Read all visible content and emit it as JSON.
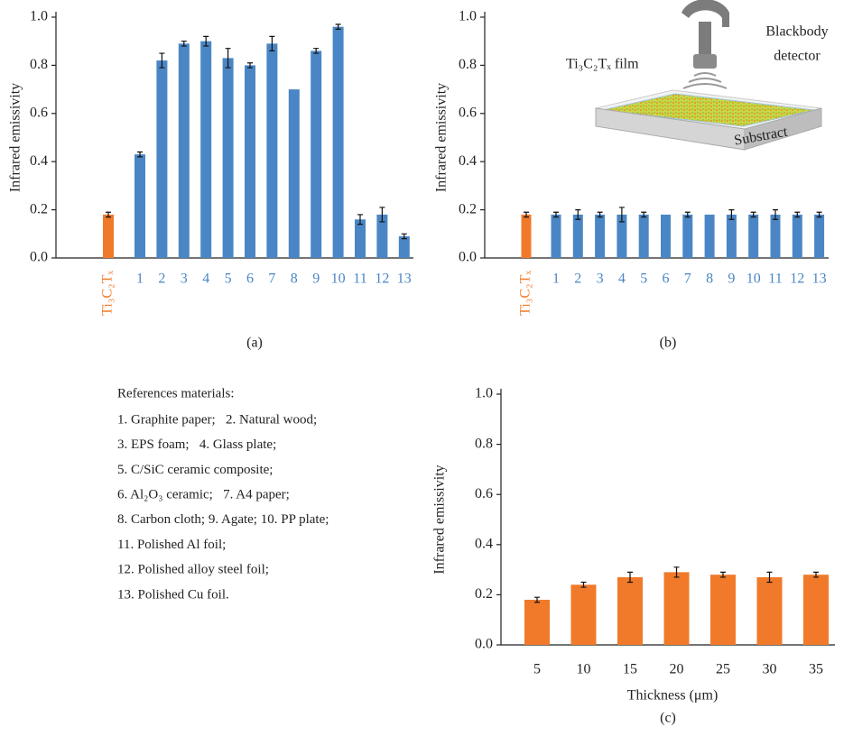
{
  "chart_data": [
    {
      "type": "bar",
      "panel": "(a)",
      "ylabel": "Infrared emissivity",
      "categories": [
        "Ti₃C₂Tₓ",
        "1",
        "2",
        "3",
        "4",
        "5",
        "6",
        "7",
        "8",
        "9",
        "10",
        "11",
        "12",
        "13"
      ],
      "values": [
        0.18,
        0.43,
        0.82,
        0.89,
        0.9,
        0.83,
        0.8,
        0.89,
        0.7,
        0.86,
        0.96,
        0.16,
        0.18,
        0.09
      ],
      "errors": [
        0.01,
        0.01,
        0.03,
        0.01,
        0.02,
        0.04,
        0.01,
        0.03,
        null,
        0.01,
        0.01,
        0.02,
        0.03,
        0.01
      ],
      "colors": [
        "#f07a2a",
        "#4a86c5",
        "#4a86c5",
        "#4a86c5",
        "#4a86c5",
        "#4a86c5",
        "#4a86c5",
        "#4a86c5",
        "#4a86c5",
        "#4a86c5",
        "#4a86c5",
        "#4a86c5",
        "#4a86c5",
        "#4a86c5"
      ],
      "ylim": [
        0,
        1
      ],
      "yticks": [
        {
          "value": 0,
          "label": "0.0"
        },
        0.2,
        0.4,
        0.6,
        0.8,
        {
          "value": 1,
          "label": "1.0"
        }
      ]
    },
    {
      "type": "bar",
      "panel": "(b)",
      "ylabel": "Infrared emissivity",
      "categories": [
        "Ti₃C₂Tₓ",
        "1",
        "2",
        "3",
        "4",
        "5",
        "6",
        "7",
        "8",
        "9",
        "10",
        "11",
        "12",
        "13"
      ],
      "values": [
        0.18,
        0.18,
        0.18,
        0.18,
        0.18,
        0.18,
        0.18,
        0.18,
        0.18,
        0.18,
        0.18,
        0.18,
        0.18,
        0.18
      ],
      "errors": [
        0.01,
        0.01,
        0.02,
        0.01,
        0.03,
        0.01,
        null,
        0.01,
        null,
        0.02,
        0.01,
        0.02,
        0.01,
        0.01
      ],
      "colors": [
        "#f07a2a",
        "#4a86c5",
        "#4a86c5",
        "#4a86c5",
        "#4a86c5",
        "#4a86c5",
        "#4a86c5",
        "#4a86c5",
        "#4a86c5",
        "#4a86c5",
        "#4a86c5",
        "#4a86c5",
        "#4a86c5",
        "#4a86c5"
      ],
      "ylim": [
        0,
        1
      ],
      "yticks": [
        {
          "value": 0,
          "label": "0.0"
        },
        0.2,
        0.4,
        0.6,
        0.8,
        {
          "value": 1,
          "label": "1.0"
        }
      ],
      "annotations": [
        "Blackbody",
        "detector",
        "Ti₃C₂Tₓ film",
        "Substract"
      ]
    },
    {
      "type": "bar",
      "panel": "(c)",
      "ylabel": "Infrared emissivity",
      "xlabel": "Thickness (μm)",
      "categories": [
        "5",
        "10",
        "15",
        "20",
        "25",
        "30",
        "35"
      ],
      "values": [
        0.18,
        0.24,
        0.27,
        0.29,
        0.28,
        0.27,
        0.28
      ],
      "errors": [
        0.01,
        0.01,
        0.02,
        0.02,
        0.01,
        0.02,
        0.01
      ],
      "colors": [
        "#f07a2a",
        "#f07a2a",
        "#f07a2a",
        "#f07a2a",
        "#f07a2a",
        "#f07a2a",
        "#f07a2a"
      ],
      "ylim": [
        0,
        1
      ],
      "yticks": [
        {
          "value": 0,
          "label": "0.0"
        },
        0.2,
        0.4,
        0.6,
        0.8,
        {
          "value": 1,
          "label": "1.0"
        }
      ]
    }
  ],
  "references": {
    "title": "References materials:",
    "lines": [
      "1. Graphite paper;   2. Natural wood;",
      "3. EPS foam;   4. Glass plate;",
      "5. C/SiC ceramic composite;",
      "6. Al₂O₃ ceramic;   7. A4 paper;",
      "8. Carbon cloth; 9. Agate; 10. PP plate;",
      "11. Polished Al foil;",
      "12. Polished alloy steel foil;",
      "13. Polished Cu foil."
    ]
  }
}
